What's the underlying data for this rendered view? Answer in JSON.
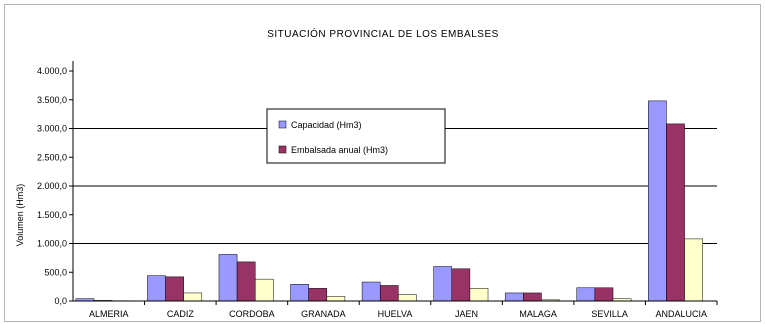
{
  "chart_data": {
    "type": "bar",
    "title": "SITUACIÓN PROVINCIAL DE LOS EMBALSES",
    "ylabel": "Volumen (Hm3)",
    "xlabel": "",
    "ylim": [
      0,
      4000
    ],
    "yticks": [
      "0,0",
      "500,0",
      "1.000,0",
      "1.500,0",
      "2.000,0",
      "2.500,0",
      "3.000,0",
      "3.500,0",
      "4.000,0"
    ],
    "categories": [
      "ALMERIA",
      "CADIZ",
      "CORDOBA",
      "GRANADA",
      "HUELVA",
      "JAEN",
      "MALAGA",
      "SEVILLA",
      "ANDALUCIA"
    ],
    "series": [
      {
        "name": "Capacidad (Hm3)",
        "values": [
          40,
          440,
          810,
          290,
          330,
          600,
          140,
          230,
          3480
        ]
      },
      {
        "name": "Embalsada anual (Hm3)",
        "values": [
          10,
          420,
          680,
          220,
          270,
          560,
          140,
          230,
          3080
        ]
      },
      {
        "name": "",
        "values": [
          5,
          140,
          380,
          80,
          110,
          220,
          20,
          40,
          1080
        ]
      }
    ],
    "colors": [
      "#9999ff",
      "#993366",
      "#ffffcc"
    ],
    "grid": true,
    "legend": "top-center"
  }
}
